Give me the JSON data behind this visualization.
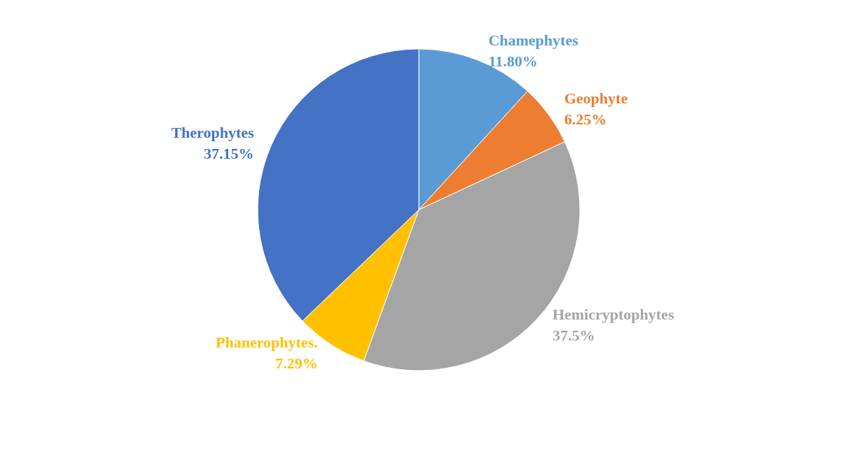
{
  "chart_data": {
    "type": "pie",
    "categories": [
      "Chamephytes",
      "Geophyte",
      "Hemicryptophytes",
      "Phanerophytes.",
      "Therophytes"
    ],
    "values": [
      11.8,
      6.25,
      37.5,
      7.29,
      37.15
    ],
    "value_labels": [
      "11.80%",
      "6.25%",
      "37.5%",
      "7.29%",
      "37.15%"
    ],
    "colors": [
      "#5b9bd5",
      "#ed7d31",
      "#a5a5a5",
      "#ffc000",
      "#4472c4"
    ],
    "legend": false
  }
}
